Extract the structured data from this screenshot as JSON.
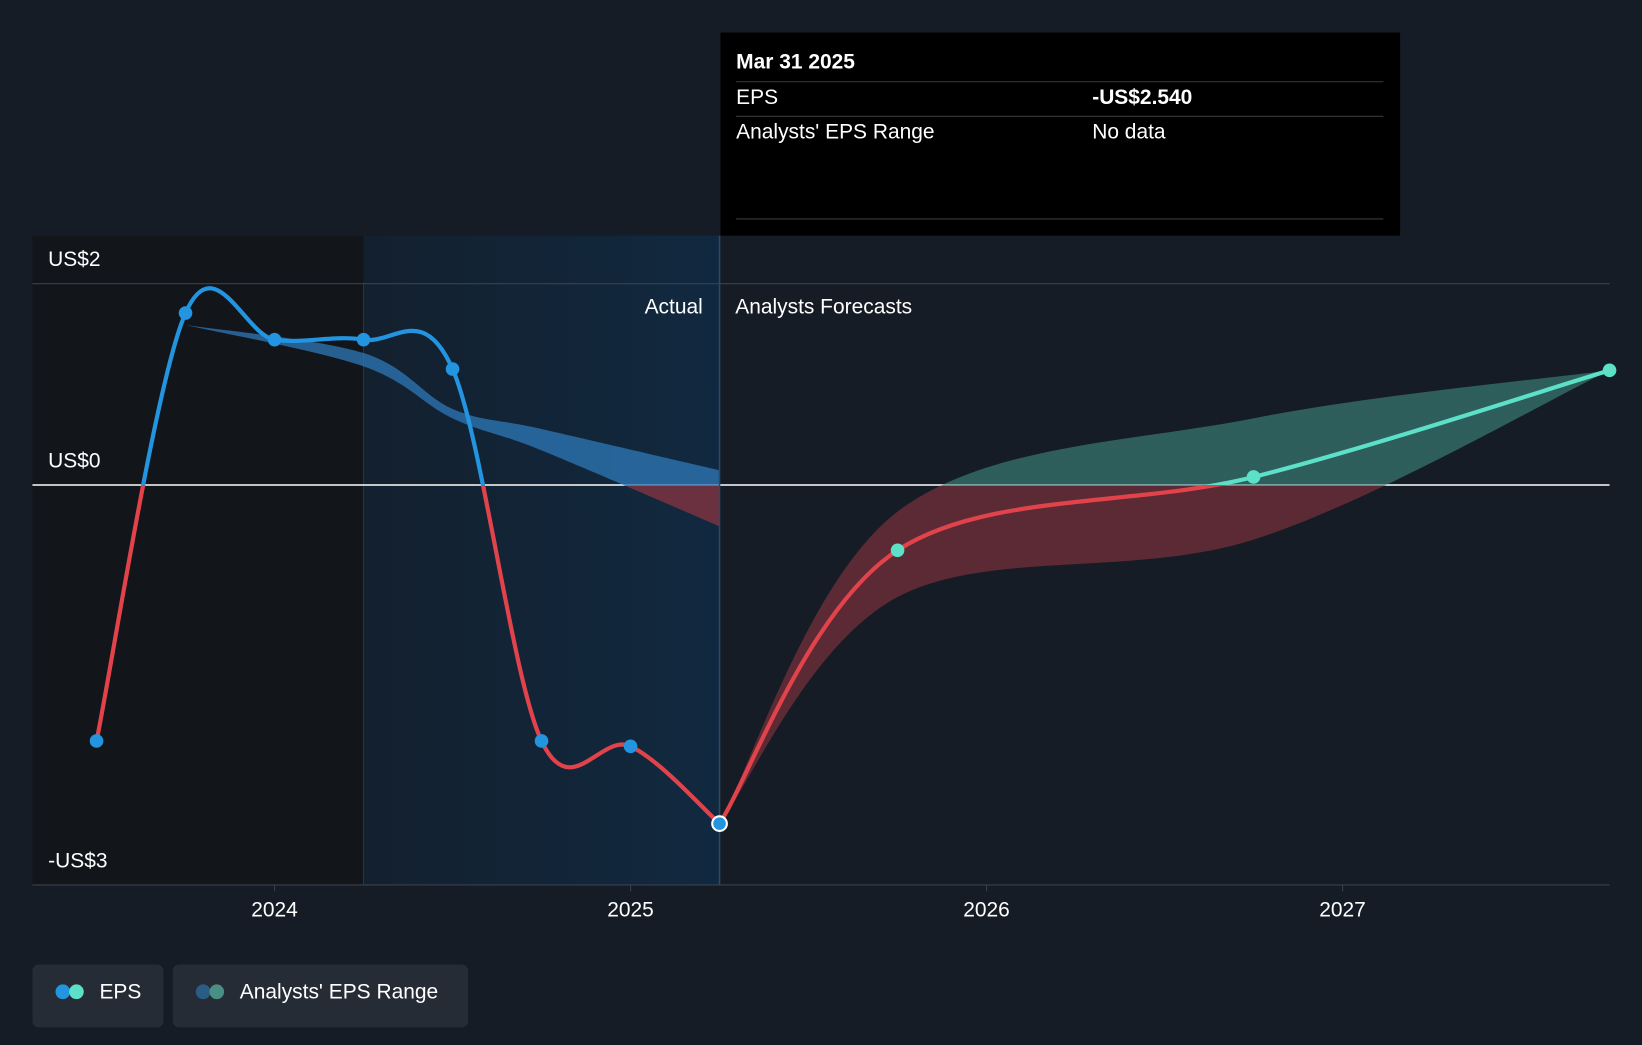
{
  "chart_data": {
    "type": "line",
    "xlim": [
      2023.32,
      2027.75
    ],
    "xticks": [
      2024,
      2025,
      2026,
      2027
    ],
    "ylim": [
      -3,
      1.87
    ],
    "yticks": [
      {
        "value": 1.51,
        "label": "US$2"
      },
      {
        "value": 0,
        "label": "US$0"
      },
      {
        "value": -3,
        "label": "-US$3"
      }
    ],
    "actual_label": "Actual",
    "forecast_label": "Analysts Forecasts",
    "colors": {
      "positive": "#2394df",
      "negative": "#e2434b",
      "forecast_positive": "#5ce1c8",
      "range_positive": "#2d78b8",
      "range_negative": "#8a3440",
      "range_forecast_positive": "#3f8a80"
    },
    "eps": {
      "name": "EPS",
      "actual": {
        "x": [
          2023.5,
          2023.75,
          2024.0,
          2024.25,
          2024.5,
          2024.75,
          2025.0,
          2025.25
        ],
        "values": [
          -1.92,
          1.29,
          1.09,
          1.09,
          0.87,
          -1.92,
          -1.96,
          -2.54
        ]
      },
      "forecast": {
        "x": [
          2025.25,
          2025.75,
          2026.75,
          2027.75
        ],
        "values": [
          -2.54,
          -0.49,
          0.06,
          0.86
        ]
      }
    },
    "range": {
      "name": "Analysts' EPS Range",
      "actual": {
        "x": [
          2023.75,
          2024.25,
          2024.5,
          2024.75,
          2025.25
        ],
        "high": [
          1.2,
          0.99,
          0.57,
          0.42,
          0.11
        ],
        "low": [
          1.2,
          0.89,
          0.5,
          0.26,
          -0.31
        ]
      },
      "forecast": {
        "x": [
          2025.25,
          2025.75,
          2026.75,
          2027.75
        ],
        "high": [
          -2.54,
          -0.2,
          0.5,
          0.86
        ],
        "low": [
          -2.54,
          -0.84,
          -0.41,
          0.86
        ]
      }
    },
    "tooltip": {
      "date": "Mar 31 2025",
      "rows": [
        {
          "label": "EPS",
          "value": "-US$2.540"
        },
        {
          "label": "Analysts' EPS Range",
          "value": "No data"
        }
      ]
    }
  }
}
